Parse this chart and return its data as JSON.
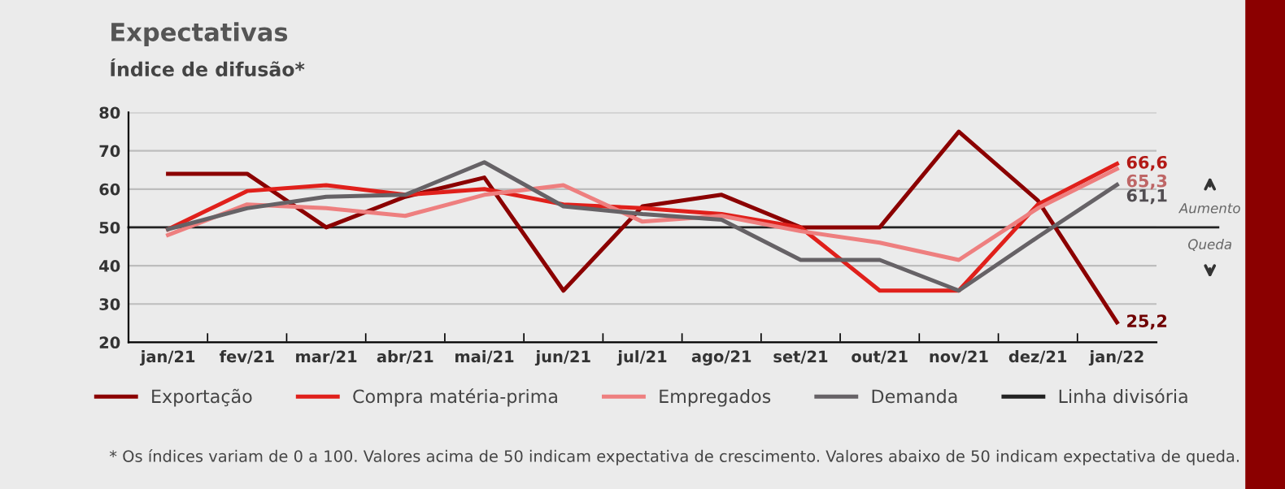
{
  "chart_data": {
    "type": "line",
    "title": "Expectativas",
    "subtitle": "Índice de difusão*",
    "categories": [
      "jan/21",
      "fev/21",
      "mar/21",
      "abr/21",
      "mai/21",
      "jun/21",
      "jul/21",
      "ago/21",
      "set/21",
      "out/21",
      "nov/21",
      "dez/21",
      "jan/22"
    ],
    "series": [
      {
        "name": "Exportação",
        "color": "#8b0000",
        "values": [
          64,
          64,
          50,
          58,
          63,
          33.5,
          55.5,
          58.5,
          50,
          50,
          75,
          57,
          25.2
        ],
        "value_labels": [
          null,
          null,
          null,
          null,
          null,
          null,
          null,
          null,
          null,
          null,
          null,
          null,
          "25,2"
        ]
      },
      {
        "name": "Compra matéria-prima",
        "color": "#e0201b",
        "values": [
          49.5,
          59.5,
          61,
          58.5,
          60,
          56,
          55,
          53.5,
          50,
          33.5,
          33.5,
          56,
          66.6
        ],
        "value_labels": [
          null,
          null,
          null,
          null,
          null,
          null,
          null,
          null,
          null,
          null,
          null,
          null,
          "66,6"
        ]
      },
      {
        "name": "Empregados",
        "color": "#ee7f7f",
        "values": [
          48,
          56,
          55,
          53,
          58.5,
          61,
          51.5,
          53,
          49,
          46,
          41.5,
          55,
          65.3
        ],
        "value_labels": [
          null,
          null,
          null,
          null,
          null,
          null,
          null,
          null,
          null,
          null,
          null,
          null,
          "65,3"
        ]
      },
      {
        "name": "Demanda",
        "color": "#666266",
        "values": [
          49.5,
          55,
          58,
          58.5,
          67,
          55.5,
          53.5,
          52,
          41.5,
          41.5,
          33.5,
          47.5,
          61.1
        ],
        "value_labels": [
          null,
          null,
          null,
          null,
          null,
          null,
          null,
          null,
          null,
          null,
          null,
          null,
          "61,1"
        ]
      }
    ],
    "ref_lines": [
      {
        "axis": "y",
        "value": 50,
        "label": "Linha divisória",
        "color": "#222222"
      }
    ],
    "ylim": [
      20,
      80
    ],
    "yticks": [
      20,
      30,
      40,
      50,
      60,
      70,
      80
    ],
    "grid": "y",
    "legend": "bottom",
    "marker": "none",
    "line_style": "solid",
    "annotations": [
      "Aumento",
      "Queda",
      "* Os índices variam de 0 a 100. Valores acima de 50 indicam expectativa de crescimento. Valores abaixo de 50 indicam expectativa de queda."
    ]
  }
}
